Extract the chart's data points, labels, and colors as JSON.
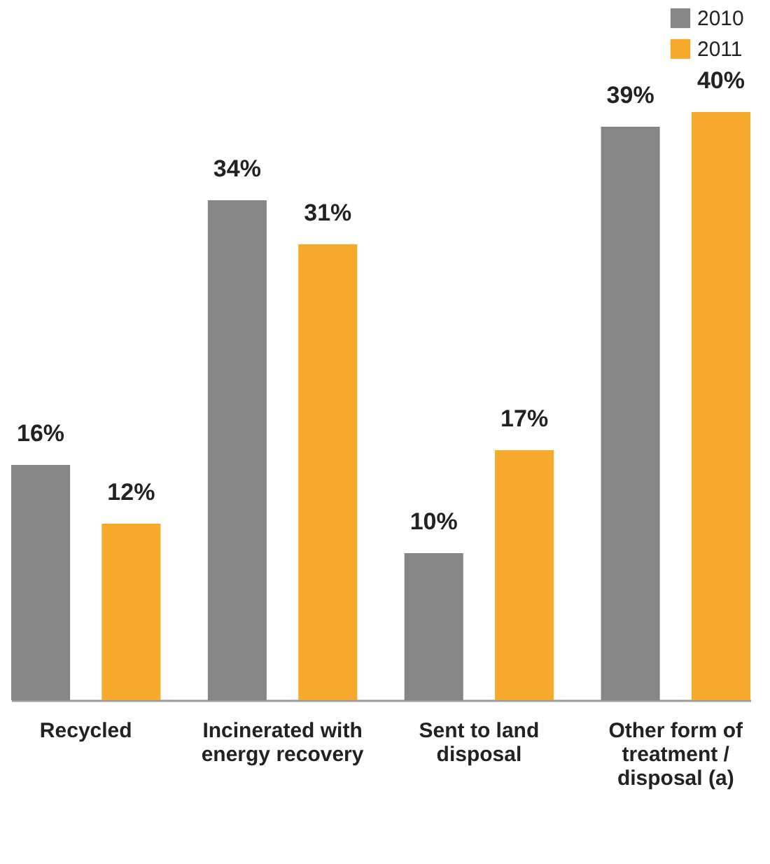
{
  "chart_data": {
    "type": "bar",
    "categories": [
      "Recycled",
      "Incinerated with energy recovery",
      "Sent to land disposal",
      "Other form of treatment / disposal (a)"
    ],
    "series": [
      {
        "name": "2010",
        "color": "#868686",
        "values": [
          16,
          34,
          10,
          39
        ],
        "value_labels": [
          "16%",
          "34%",
          "10%",
          "39%"
        ]
      },
      {
        "name": "2011",
        "color": "#f6a92b",
        "values": [
          12,
          31,
          17,
          40
        ],
        "value_labels": [
          "12%",
          "31%",
          "17%",
          "40%"
        ]
      }
    ],
    "legend": "top right",
    "grid": false
  }
}
